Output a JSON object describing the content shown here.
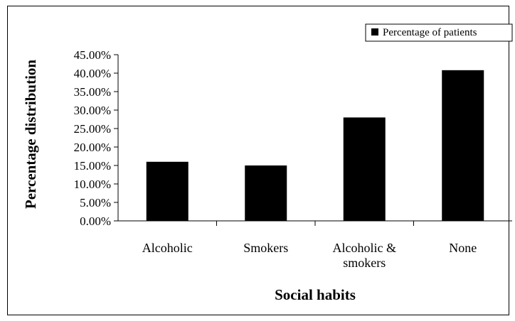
{
  "chart_data": {
    "type": "bar",
    "categories": [
      "Alcoholic",
      "Smokers",
      "Alcoholic & smokers",
      "None"
    ],
    "category_lines": [
      [
        "Alcoholic"
      ],
      [
        "Smokers"
      ],
      [
        "Alcoholic &",
        "smokers"
      ],
      [
        "None"
      ]
    ],
    "series": [
      {
        "name": "Percentage of patients",
        "values": [
          16.0,
          15.0,
          28.0,
          40.8
        ],
        "color": "#000000"
      }
    ],
    "xlabel": "Social habits",
    "ylabel": "Percentage distribution",
    "ylim": [
      0,
      45
    ],
    "yticks": [
      "0.00%",
      "5.00%",
      "10.00%",
      "15.00%",
      "20.00%",
      "25.00%",
      "30.00%",
      "35.00%",
      "40.00%",
      "45.00%"
    ],
    "grid": false,
    "legend_position": "top-right"
  }
}
